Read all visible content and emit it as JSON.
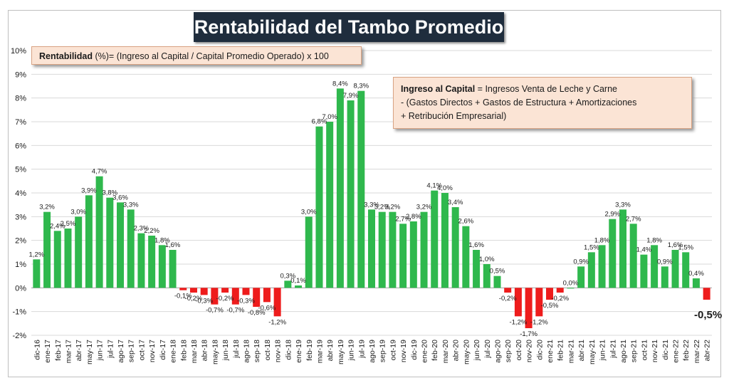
{
  "title": "Rentabilidad del Tambo Promedio",
  "note_formula": {
    "bold": "Rentabilidad",
    "rest": " (%)= (Ingreso al Capital / Capital Promedio Operado) x 100"
  },
  "note_definition": {
    "line1_bold": "Ingreso al Capital",
    "line1_rest": " = Ingresos Venta de Leche y Carne",
    "line2": "-  (Gastos Directos + Gastos de Estructura  + Amortizaciones",
    "line3": "+  Retribución Empresarial)"
  },
  "colors": {
    "positive": "#2fb84d",
    "negative": "#ee1c1c",
    "grid": "#d9d9d9"
  },
  "chart_data": {
    "type": "bar",
    "title": "Rentabilidad del Tambo Promedio",
    "ylim": [
      -2,
      10
    ],
    "yticks": [
      "-2%",
      "-1%",
      "0%",
      "1%",
      "2%",
      "3%",
      "4%",
      "5%",
      "6%",
      "7%",
      "8%",
      "9%",
      "10%"
    ],
    "grid": true,
    "categories": [
      "dic-16",
      "ene-17",
      "feb-17",
      "mar-17",
      "abr-17",
      "may-17",
      "jun-17",
      "jul-17",
      "ago-17",
      "sep-17",
      "oct-17",
      "nov-17",
      "dic-17",
      "ene-18",
      "feb-18",
      "mar-18",
      "abr-18",
      "may-18",
      "jun-18",
      "jul-18",
      "ago-18",
      "sep-18",
      "oct-18",
      "nov-18",
      "dic-18",
      "ene-19",
      "feb-19",
      "mar-19",
      "abr-19",
      "may-19",
      "jun-19",
      "jul-19",
      "ago-19",
      "sep-19",
      "oct-19",
      "nov-19",
      "dic-19",
      "ene-20",
      "feb-20",
      "mar-20",
      "abr-20",
      "may-20",
      "jun-20",
      "jul-20",
      "ago-20",
      "sep-20",
      "oct-20",
      "nov-20",
      "dic-20",
      "ene-21",
      "feb-21",
      "mar-21",
      "abr-21",
      "may-21",
      "jun-21",
      "jul-21",
      "ago-21",
      "sep-21",
      "oct-21",
      "nov-21",
      "dic-21",
      "ene-22",
      "feb-22",
      "mar-22",
      "abr-22"
    ],
    "values": [
      1.2,
      3.2,
      2.4,
      2.5,
      3.0,
      3.9,
      4.7,
      3.8,
      3.6,
      3.3,
      2.3,
      2.2,
      1.8,
      1.6,
      -0.1,
      -0.2,
      -0.3,
      -0.7,
      -0.2,
      -0.7,
      -0.3,
      -0.8,
      -0.6,
      -1.2,
      0.3,
      0.1,
      3.0,
      6.8,
      7.0,
      8.4,
      7.9,
      8.3,
      3.3,
      3.2,
      3.2,
      2.7,
      2.8,
      3.2,
      4.1,
      4.0,
      3.4,
      2.6,
      1.6,
      1.0,
      0.5,
      -0.2,
      -1.2,
      -1.7,
      -1.2,
      -0.5,
      -0.2,
      0.0,
      0.9,
      1.5,
      1.8,
      2.9,
      3.3,
      2.7,
      1.4,
      1.8,
      0.9,
      1.6,
      1.5,
      0.4,
      -0.5
    ],
    "data_labels": [
      "1,2%",
      "3,2%",
      "2,4%",
      "2,5%",
      "3,0%",
      "3,9%",
      "4,7%",
      "3,8%",
      "3,6%",
      "3,3%",
      "2,3%",
      "2,2%",
      "1,8%",
      "1,6%",
      "-0,1%",
      "-0,2%",
      "-0,3%",
      "-0,7%",
      "-0,2%",
      "-0,7%",
      "-0,3%",
      "-0,8%",
      "-0,6%",
      "-1,2%",
      "0,3%",
      "0,1%",
      "3,0%",
      "6,8%",
      "7,0%",
      "8,4%",
      "7,9%",
      "8,3%",
      "3,3%",
      "3,2%",
      "3,2%",
      "2,7%",
      "2,8%",
      "3,2%",
      "4,1%",
      "4,0%",
      "3,4%",
      "2,6%",
      "1,6%",
      "1,0%",
      "0,5%",
      "-0,2%",
      "-1,2%",
      "-1,7%",
      "-1,2%",
      "-0,5%",
      "-0,2%",
      "0,0%",
      "0,9%",
      "1,5%",
      "1,8%",
      "2,9%",
      "3,3%",
      "2,7%",
      "1,4%",
      "1,8%",
      "0,9%",
      "1,6%",
      "1,5%",
      "0,4%",
      "-0,5%"
    ]
  }
}
